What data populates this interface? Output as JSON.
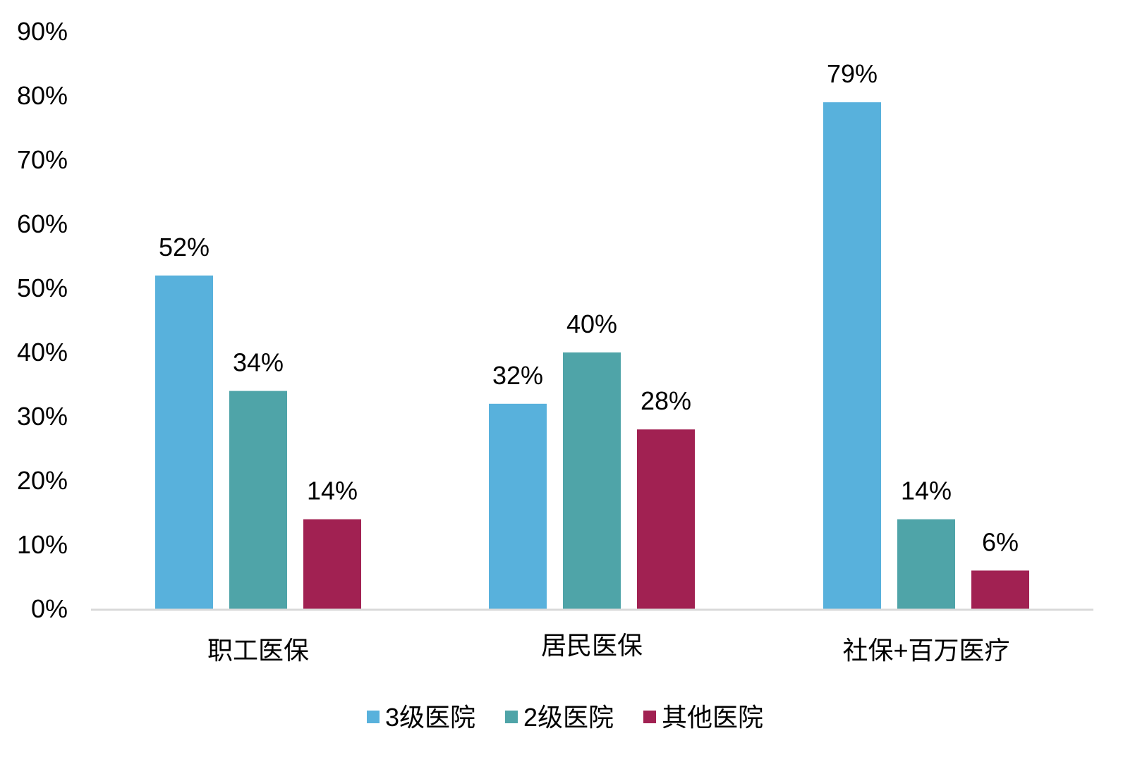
{
  "chart_data": {
    "type": "bar",
    "categories": [
      "职工医保",
      "居民医保",
      "社保+百万医疗"
    ],
    "series": [
      {
        "name": "3级医院",
        "color": "#58B1DC",
        "values": [
          52,
          32,
          79
        ],
        "labels": [
          "52%",
          "32%",
          "79%"
        ]
      },
      {
        "name": "2级医院",
        "color": "#4FA4A8",
        "values": [
          34,
          40,
          14
        ],
        "labels": [
          "34%",
          "40%",
          "14%"
        ]
      },
      {
        "name": "其他医院",
        "color": "#A12152",
        "values": [
          14,
          28,
          6
        ],
        "labels": [
          "14%",
          "28%",
          "6%"
        ]
      }
    ],
    "ylim": [
      0,
      90
    ],
    "yticks": [
      "0%",
      "10%",
      "20%",
      "30%",
      "40%",
      "50%",
      "60%",
      "70%",
      "80%",
      "90%"
    ],
    "grid": false,
    "legend_position": "bottom",
    "axis_color": "#D9D9D9"
  }
}
